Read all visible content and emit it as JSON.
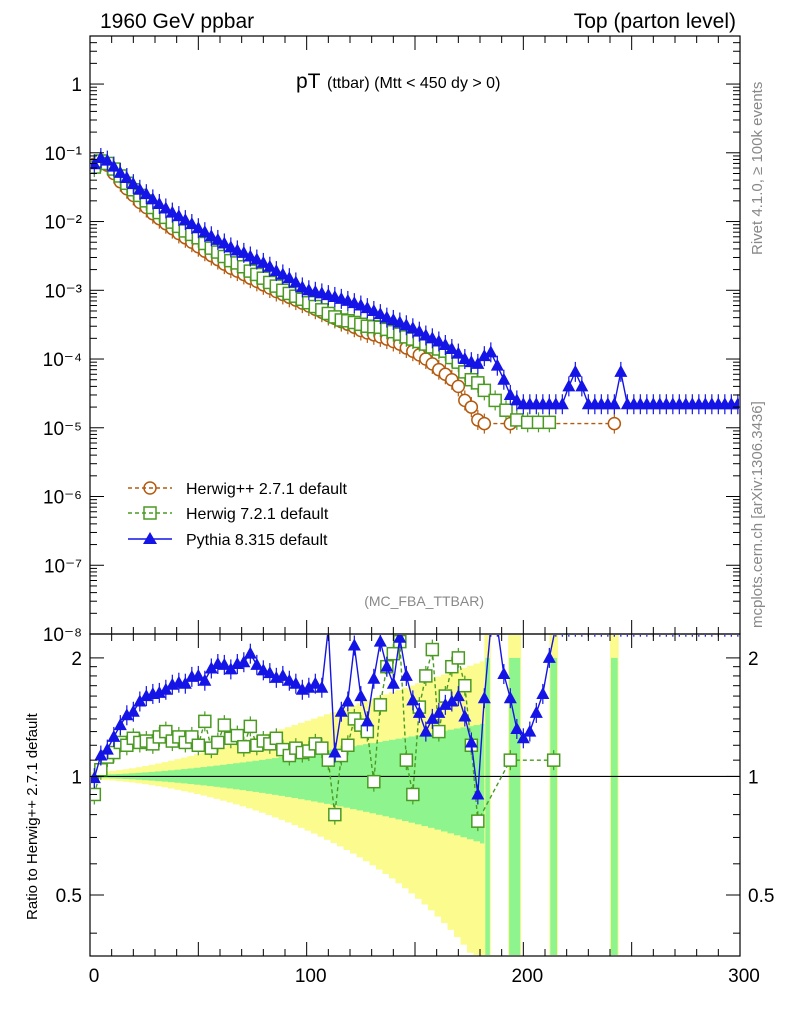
{
  "header": {
    "left": "1960 GeV ppbar",
    "right": "Top (parton level)"
  },
  "side_labels": {
    "rivet": "Rivet 4.1.0, ≥ 100k events",
    "mcplots": "mcplots.cern.ch [arXiv:1306.3436]"
  },
  "colors": {
    "herwig271": "#b45a0f",
    "herwig721": "#4a9a22",
    "pythia": "#1414e6",
    "band_green": "#8ef58e",
    "band_yellow": "#fbfb8e"
  },
  "chart_data": [
    {
      "type": "line",
      "panel": "main",
      "title": "pT",
      "title_sub": "(ttbar) (Mtt < 450 dy > 0)",
      "analysis_label": "(MC_FBA_TTBAR)",
      "xlabel": "",
      "ylabel": "",
      "xlim": [
        0,
        300
      ],
      "yscale": "log",
      "ylim": [
        1e-08,
        5
      ],
      "ytick_labels": [
        "1",
        "10⁻¹",
        "10⁻²",
        "10⁻³",
        "10⁻⁴",
        "10⁻⁵",
        "10⁻⁶",
        "10⁻⁷",
        "10⁻⁸"
      ],
      "ytick_values": [
        1,
        0.1,
        0.01,
        0.001,
        0.0001,
        1e-05,
        1e-06,
        1e-07,
        1e-08
      ],
      "legend": {
        "position": "bottom-left",
        "entries": [
          "Herwig++ 2.7.1 default",
          "Herwig 7.2.1 default",
          "Pythia 8.315 default"
        ]
      },
      "series": [
        {
          "name": "Herwig++ 2.7.1 default",
          "x": [
            2,
            5,
            8,
            11,
            14,
            17,
            20,
            23,
            26,
            29,
            32,
            35,
            38,
            41,
            44,
            47,
            50,
            53,
            56,
            59,
            62,
            65,
            68,
            71,
            74,
            77,
            80,
            83,
            86,
            89,
            92,
            95,
            98,
            101,
            104,
            107,
            110,
            113,
            116,
            119,
            122,
            125,
            128,
            131,
            134,
            137,
            140,
            143,
            146,
            149,
            152,
            155,
            158,
            161,
            164,
            167,
            170,
            173,
            176,
            179,
            182,
            194,
            242
          ],
          "y": [
            0.068,
            0.074,
            0.066,
            0.05,
            0.038,
            0.03,
            0.024,
            0.019,
            0.016,
            0.013,
            0.011,
            0.0093,
            0.0079,
            0.0067,
            0.0058,
            0.005,
            0.0043,
            0.0037,
            0.0032,
            0.0028,
            0.0024,
            0.0021,
            0.0019,
            0.0017,
            0.0015,
            0.00135,
            0.0012,
            0.00108,
            0.00096,
            0.00087,
            0.00079,
            0.00072,
            0.00065,
            0.00059,
            0.00053,
            0.00048,
            0.00043,
            0.00039,
            0.00035,
            0.00032,
            0.00029,
            0.00026,
            0.00024,
            0.000225,
            0.00021,
            0.000195,
            0.00018,
            0.000165,
            0.000145,
            0.00013,
            0.000115,
            0.0001,
            8.5e-05,
            7e-05,
            6e-05,
            5e-05,
            4e-05,
            2.5e-05,
            2e-05,
            1.3e-05,
            1.15e-05,
            1.15e-05,
            1.15e-05
          ]
        },
        {
          "name": "Herwig 7.2.1 default",
          "x": [
            2,
            5,
            8,
            11,
            14,
            17,
            20,
            23,
            26,
            29,
            32,
            35,
            38,
            41,
            44,
            47,
            50,
            53,
            56,
            59,
            62,
            65,
            68,
            71,
            74,
            77,
            80,
            83,
            86,
            89,
            92,
            95,
            98,
            101,
            104,
            107,
            110,
            113,
            116,
            119,
            122,
            125,
            128,
            131,
            134,
            137,
            140,
            143,
            146,
            149,
            152,
            155,
            158,
            161,
            164,
            167,
            170,
            173,
            176,
            179,
            182,
            187,
            192,
            197,
            202,
            207,
            212
          ],
          "y": [
            0.062,
            0.076,
            0.07,
            0.058,
            0.046,
            0.036,
            0.029,
            0.024,
            0.02,
            0.016,
            0.0135,
            0.0115,
            0.0098,
            0.0085,
            0.0073,
            0.0065,
            0.0058,
            0.0048,
            0.0041,
            0.0036,
            0.0031,
            0.0027,
            0.0025,
            0.0022,
            0.0019,
            0.0017,
            0.0015,
            0.0013,
            0.00115,
            0.001,
            0.0009,
            0.00082,
            0.00074,
            0.00066,
            0.00058,
            0.00052,
            0.00046,
            0.00041,
            0.00037,
            0.00036,
            0.00034,
            0.00032,
            0.0003,
            0.000295,
            0.00029,
            0.00027,
            0.00025,
            0.00023,
            0.00021,
            0.000195,
            0.00018,
            0.000165,
            0.00015,
            0.00014,
            0.00013,
            0.000105,
            9e-05,
            6.5e-05,
            5e-05,
            4.5e-05,
            3.5e-05,
            2.5e-05,
            1.8e-05,
            1.3e-05,
            1.2e-05,
            1.2e-05,
            1.2e-05
          ]
        },
        {
          "name": "Pythia 8.315 default",
          "x": [
            2,
            5,
            8,
            11,
            14,
            17,
            20,
            23,
            26,
            29,
            32,
            35,
            38,
            41,
            44,
            47,
            50,
            53,
            56,
            59,
            62,
            65,
            68,
            71,
            74,
            77,
            80,
            83,
            86,
            89,
            92,
            95,
            98,
            101,
            104,
            107,
            110,
            113,
            116,
            119,
            122,
            125,
            128,
            131,
            134,
            137,
            140,
            143,
            146,
            149,
            152,
            155,
            158,
            161,
            164,
            167,
            170,
            173,
            176,
            179,
            182,
            185,
            188,
            191,
            194,
            197,
            200,
            203,
            206,
            209,
            212,
            215,
            218,
            221,
            224,
            227,
            230,
            233,
            236,
            239,
            242,
            245,
            248,
            251,
            254,
            257,
            260,
            263,
            266,
            269,
            272,
            275,
            278,
            281,
            284,
            287,
            290,
            293,
            296,
            299
          ],
          "y": [
            0.068,
            0.084,
            0.077,
            0.063,
            0.051,
            0.043,
            0.035,
            0.029,
            0.025,
            0.021,
            0.018,
            0.0155,
            0.0135,
            0.012,
            0.0105,
            0.0092,
            0.008,
            0.007,
            0.0061,
            0.0054,
            0.0048,
            0.0042,
            0.0038,
            0.0035,
            0.0031,
            0.0028,
            0.0025,
            0.0022,
            0.0019,
            0.0017,
            0.0015,
            0.0013,
            0.0011,
            0.001,
            0.00095,
            0.0009,
            0.00085,
            0.0008,
            0.00075,
            0.0007,
            0.00065,
            0.0006,
            0.00055,
            0.0005,
            0.00045,
            0.0004,
            0.00037,
            0.00034,
            0.00031,
            0.00028,
            0.00025,
            0.00022,
            0.0002,
            0.00018,
            0.00016,
            0.00014,
            0.00012,
            0.0001,
            9e-05,
            8.5e-05,
            0.00011,
            0.000125,
            8e-05,
            5e-05,
            3e-05,
            2.5e-05,
            2.2e-05,
            2.2e-05,
            2.2e-05,
            2.2e-05,
            2.2e-05,
            2.2e-05,
            2.2e-05,
            4e-05,
            6.5e-05,
            4e-05,
            2.2e-05,
            2.2e-05,
            2.2e-05,
            2.2e-05,
            2.2e-05,
            6.5e-05,
            2.2e-05,
            2.2e-05,
            2.2e-05,
            2.2e-05,
            2.2e-05,
            2.2e-05,
            2.2e-05,
            2.2e-05,
            2.2e-05,
            2.2e-05,
            2.2e-05,
            2.2e-05,
            2.2e-05,
            2.2e-05,
            2.2e-05,
            2.2e-05,
            2.2e-05,
            2.2e-05
          ]
        }
      ]
    },
    {
      "type": "line",
      "panel": "ratio",
      "ylabel": "Ratio to Herwig++ 2.7.1 default",
      "xlim": [
        0,
        300
      ],
      "ylim": [
        0.35,
        2.3
      ],
      "yscale": "log",
      "ytick_labels": [
        "0.5",
        "1",
        "2"
      ],
      "ytick_values": [
        0.5,
        1,
        2
      ],
      "xtick_labels": [
        "0",
        "100",
        "200",
        "300"
      ],
      "xtick_values": [
        0,
        100,
        200,
        300
      ],
      "series": [
        {
          "name": "Herwig 7.2.1 default",
          "x": [
            2,
            5,
            8,
            11,
            14,
            17,
            20,
            23,
            26,
            29,
            32,
            35,
            38,
            41,
            44,
            47,
            50,
            53,
            56,
            59,
            62,
            65,
            68,
            71,
            74,
            77,
            80,
            83,
            86,
            89,
            92,
            95,
            98,
            101,
            104,
            107,
            110,
            113,
            116,
            119,
            122,
            125,
            128,
            131,
            134,
            137,
            140,
            143,
            146,
            149,
            152,
            155,
            158,
            161,
            164,
            167,
            170,
            173,
            176,
            179,
            194,
            214
          ],
          "y": [
            0.9,
            1.04,
            1.12,
            1.15,
            1.22,
            1.2,
            1.25,
            1.22,
            1.23,
            1.21,
            1.26,
            1.3,
            1.23,
            1.26,
            1.22,
            1.26,
            1.2,
            1.38,
            1.18,
            1.22,
            1.35,
            1.25,
            1.27,
            1.19,
            1.34,
            1.2,
            1.23,
            1.21,
            1.25,
            1.17,
            1.13,
            1.18,
            1.15,
            1.16,
            1.21,
            1.18,
            1.1,
            0.8,
            1.13,
            1.2,
            1.4,
            1.35,
            1.3,
            0.97,
            1.52,
            1.9,
            2.05,
            2.2,
            1.1,
            0.9,
            1.5,
            1.8,
            2.1,
            1.3,
            1.6,
            1.9,
            2.0,
            1.7,
            1.2,
            0.77,
            1.1,
            1.1
          ]
        },
        {
          "name": "Pythia 8.315 default",
          "x": [
            2,
            5,
            8,
            11,
            14,
            17,
            20,
            23,
            26,
            29,
            32,
            35,
            38,
            41,
            44,
            47,
            50,
            53,
            56,
            59,
            62,
            65,
            68,
            71,
            74,
            77,
            80,
            83,
            86,
            89,
            92,
            95,
            98,
            101,
            104,
            107,
            110,
            113,
            116,
            119,
            122,
            125,
            128,
            131,
            134,
            137,
            140,
            143,
            146,
            149,
            152,
            155,
            158,
            161,
            164,
            167,
            170,
            173,
            176,
            179,
            182,
            185,
            188,
            191,
            194,
            197,
            200,
            203,
            206,
            209,
            212,
            215,
            218,
            221,
            224,
            227,
            230,
            233,
            236,
            239,
            242,
            245,
            248,
            251,
            254,
            257,
            260,
            263,
            266,
            269,
            272,
            275,
            278,
            281,
            284,
            287,
            290,
            293,
            296,
            299
          ],
          "y": [
            0.99,
            1.13,
            1.17,
            1.26,
            1.35,
            1.43,
            1.46,
            1.55,
            1.6,
            1.62,
            1.63,
            1.66,
            1.71,
            1.73,
            1.72,
            1.79,
            1.8,
            1.75,
            1.88,
            1.93,
            1.92,
            1.87,
            1.93,
            1.95,
            2.05,
            1.92,
            1.86,
            1.83,
            1.78,
            1.8,
            1.75,
            1.72,
            1.66,
            1.68,
            1.72,
            1.68,
            2.38,
            1.15,
            1.46,
            1.55,
            2.15,
            1.6,
            1.38,
            1.77,
            2.2,
            1.9,
            1.72,
            2.25,
            1.8,
            1.56,
            1.45,
            1.3,
            1.4,
            1.45,
            1.52,
            1.55,
            1.6,
            1.42,
            1.22,
            0.9,
            1.58,
            2.4,
            2.4,
            1.82,
            1.58,
            1.32,
            1.25,
            1.3,
            1.45,
            1.62,
            2.0,
            2.4,
            2.4,
            2.4,
            2.4,
            2.4,
            2.4,
            2.4,
            2.4,
            2.4,
            2.4,
            2.4,
            2.4,
            2.4,
            2.4,
            2.4,
            2.4,
            2.4,
            2.4,
            2.4,
            2.4,
            2.4,
            2.4,
            2.4,
            2.4,
            2.4,
            2.4,
            2.4,
            2.4,
            2.4
          ]
        }
      ]
    }
  ]
}
